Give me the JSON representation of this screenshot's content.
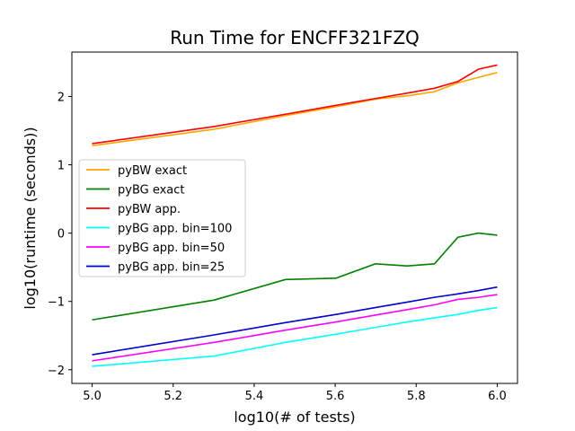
{
  "chart_data": {
    "type": "line",
    "title": "Run Time for ENCFF321FZQ",
    "xlabel": "log10(# of tests)",
    "ylabel": "log10(runtime (seconds))",
    "xlim": [
      4.95,
      6.05
    ],
    "ylim": [
      -2.2,
      2.65
    ],
    "xticks": [
      "5.0",
      "5.2",
      "5.4",
      "5.6",
      "5.8",
      "6.0"
    ],
    "yticks": [
      "−2",
      "−1",
      "0",
      "1",
      "2"
    ],
    "grid": false,
    "legend_position": "center-left",
    "series": [
      {
        "name": "pyBW exact",
        "color": "#ffa500",
        "x": [
          5.0,
          5.301,
          5.477,
          5.602,
          5.699,
          5.778,
          5.845,
          5.903,
          5.954,
          6.0
        ],
        "y": [
          1.28,
          1.52,
          1.72,
          1.85,
          1.96,
          2.01,
          2.07,
          2.2,
          2.28,
          2.35
        ]
      },
      {
        "name": "pyBG exact",
        "color": "#008000",
        "x": [
          5.0,
          5.301,
          5.477,
          5.602,
          5.699,
          5.778,
          5.845,
          5.903,
          5.954,
          6.0
        ],
        "y": [
          -1.27,
          -0.98,
          -0.68,
          -0.66,
          -0.45,
          -0.48,
          -0.45,
          -0.06,
          0.0,
          -0.03
        ]
      },
      {
        "name": "pyBW app.",
        "color": "#ff0000",
        "x": [
          5.0,
          5.301,
          5.477,
          5.602,
          5.699,
          5.778,
          5.845,
          5.903,
          5.954,
          6.0
        ],
        "y": [
          1.31,
          1.56,
          1.74,
          1.87,
          1.97,
          2.05,
          2.12,
          2.22,
          2.4,
          2.46
        ]
      },
      {
        "name": "pyBG app. bin=100",
        "color": "#00ffff",
        "x": [
          5.0,
          5.301,
          5.477,
          5.602,
          5.699,
          5.778,
          5.845,
          5.903,
          5.954,
          6.0
        ],
        "y": [
          -1.95,
          -1.8,
          -1.6,
          -1.48,
          -1.38,
          -1.3,
          -1.24,
          -1.19,
          -1.13,
          -1.09
        ]
      },
      {
        "name": "pyBG app. bin=50",
        "color": "#ff00ff",
        "x": [
          5.0,
          5.301,
          5.477,
          5.602,
          5.699,
          5.778,
          5.845,
          5.903,
          5.954,
          6.0
        ],
        "y": [
          -1.87,
          -1.6,
          -1.42,
          -1.3,
          -1.2,
          -1.12,
          -1.05,
          -0.97,
          -0.94,
          -0.9
        ]
      },
      {
        "name": "pyBG app. bin=25",
        "color": "#0000cc",
        "x": [
          5.0,
          5.301,
          5.477,
          5.602,
          5.699,
          5.778,
          5.845,
          5.903,
          5.954,
          6.0
        ],
        "y": [
          -1.78,
          -1.49,
          -1.31,
          -1.19,
          -1.09,
          -1.01,
          -0.94,
          -0.89,
          -0.84,
          -0.79
        ]
      }
    ]
  }
}
